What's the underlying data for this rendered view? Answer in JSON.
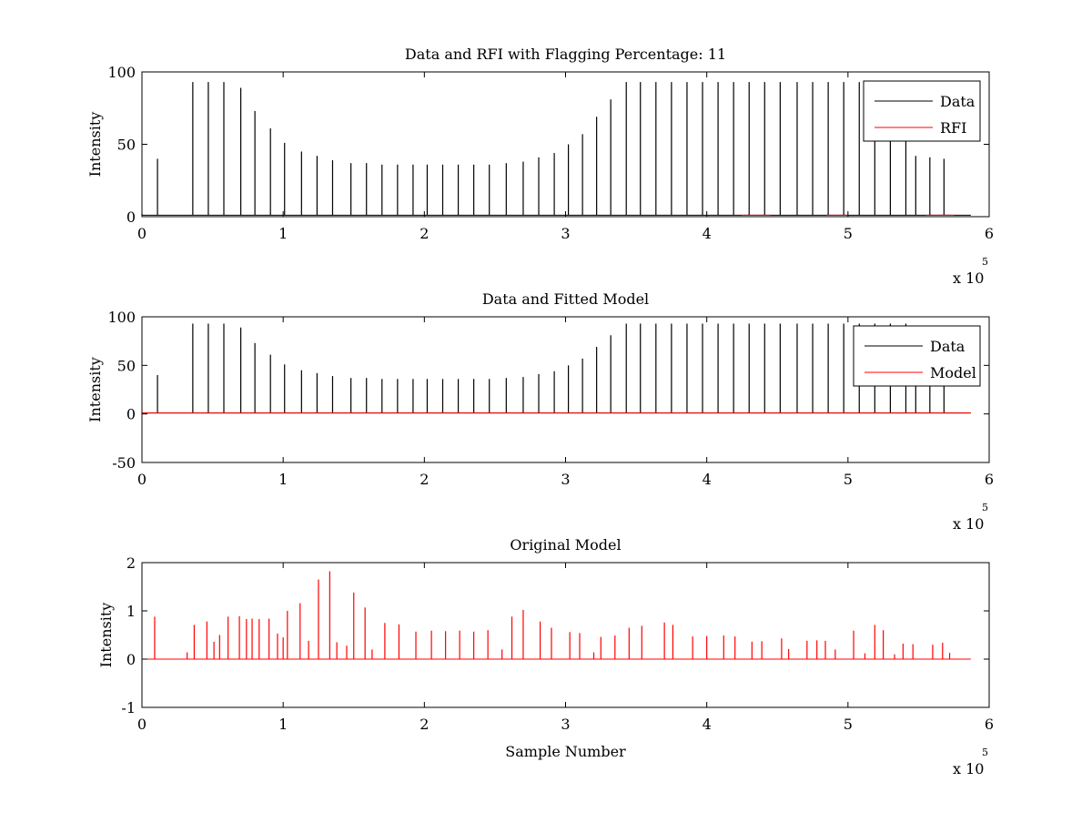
{
  "chart_data": [
    {
      "type": "line",
      "title": "Data and RFI with Flagging Percentage: 11",
      "xlabel": "",
      "ylabel": "Intensity",
      "xlim": [
        0,
        6
      ],
      "ylim": [
        0,
        100
      ],
      "xticks": [
        0,
        1,
        2,
        3,
        4,
        5,
        6
      ],
      "yticks": [
        0,
        50,
        100
      ],
      "x_multiplier": "x 10",
      "x_multiplier_exp": "5",
      "legend": [
        "Data",
        "RFI"
      ],
      "legend_position": "top-right",
      "grid": false,
      "series": [
        {
          "name": "Data",
          "color": "#000000",
          "baseline": 1,
          "peaks": [
            {
              "x": 0.0,
              "y": 2
            },
            {
              "x": 0.11,
              "y": 40
            },
            {
              "x": 0.36,
              "y": 93
            },
            {
              "x": 0.47,
              "y": 93
            },
            {
              "x": 0.58,
              "y": 93
            },
            {
              "x": 0.7,
              "y": 89
            },
            {
              "x": 0.8,
              "y": 73
            },
            {
              "x": 0.91,
              "y": 61
            },
            {
              "x": 1.01,
              "y": 51
            },
            {
              "x": 1.13,
              "y": 45
            },
            {
              "x": 1.24,
              "y": 42
            },
            {
              "x": 1.35,
              "y": 39
            },
            {
              "x": 1.48,
              "y": 37
            },
            {
              "x": 1.59,
              "y": 37
            },
            {
              "x": 1.7,
              "y": 36
            },
            {
              "x": 1.81,
              "y": 36
            },
            {
              "x": 1.92,
              "y": 36
            },
            {
              "x": 2.02,
              "y": 36
            },
            {
              "x": 2.13,
              "y": 36
            },
            {
              "x": 2.24,
              "y": 36
            },
            {
              "x": 2.35,
              "y": 36
            },
            {
              "x": 2.46,
              "y": 36
            },
            {
              "x": 2.58,
              "y": 37
            },
            {
              "x": 2.7,
              "y": 38
            },
            {
              "x": 2.81,
              "y": 41
            },
            {
              "x": 2.92,
              "y": 44
            },
            {
              "x": 3.02,
              "y": 50
            },
            {
              "x": 3.12,
              "y": 57
            },
            {
              "x": 3.22,
              "y": 69
            },
            {
              "x": 3.32,
              "y": 81
            },
            {
              "x": 3.43,
              "y": 93
            },
            {
              "x": 3.53,
              "y": 93
            },
            {
              "x": 3.64,
              "y": 93
            },
            {
              "x": 3.75,
              "y": 93
            },
            {
              "x": 3.86,
              "y": 93
            },
            {
              "x": 3.97,
              "y": 93
            },
            {
              "x": 4.08,
              "y": 93
            },
            {
              "x": 4.19,
              "y": 93
            },
            {
              "x": 4.3,
              "y": 93
            },
            {
              "x": 4.41,
              "y": 93
            },
            {
              "x": 4.52,
              "y": 93
            },
            {
              "x": 4.64,
              "y": 93
            },
            {
              "x": 4.75,
              "y": 93
            },
            {
              "x": 4.86,
              "y": 93
            },
            {
              "x": 4.97,
              "y": 93
            },
            {
              "x": 5.08,
              "y": 93
            },
            {
              "x": 5.19,
              "y": 93
            },
            {
              "x": 5.3,
              "y": 93
            },
            {
              "x": 5.41,
              "y": 93
            },
            {
              "x": 5.48,
              "y": 42
            },
            {
              "x": 5.58,
              "y": 41
            },
            {
              "x": 5.68,
              "y": 40
            }
          ]
        },
        {
          "name": "RFI",
          "color": "#ff0000",
          "segments": [
            [
              4.25,
              4.45
            ],
            [
              4.85,
              5.0
            ],
            [
              5.55,
              5.75
            ]
          ],
          "level": 1
        }
      ]
    },
    {
      "type": "line",
      "title": "Data and Fitted Model",
      "xlabel": "",
      "ylabel": "Intensity",
      "xlim": [
        0,
        6
      ],
      "ylim": [
        -50,
        100
      ],
      "xticks": [
        0,
        1,
        2,
        3,
        4,
        5,
        6
      ],
      "yticks": [
        -50,
        0,
        50,
        100
      ],
      "x_multiplier": "x 10",
      "x_multiplier_exp": "5",
      "legend": [
        "Data",
        "Model"
      ],
      "legend_position": "top-right",
      "grid": false,
      "series": [
        {
          "name": "Data",
          "color": "#000000",
          "same_as_panel": 0
        },
        {
          "name": "Model",
          "color": "#ff0000",
          "x_range": [
            0,
            5.87
          ],
          "value": 1
        }
      ]
    },
    {
      "type": "line",
      "title": "Original Model",
      "xlabel": "Sample Number",
      "ylabel": "Intensity",
      "xlim": [
        0,
        6
      ],
      "ylim": [
        -1,
        2
      ],
      "xticks": [
        0,
        1,
        2,
        3,
        4,
        5,
        6
      ],
      "yticks": [
        -1,
        0,
        1,
        2
      ],
      "x_multiplier": "x 10",
      "x_multiplier_exp": "5",
      "grid": false,
      "series": [
        {
          "color": "#ff0000",
          "baseline": 0,
          "peaks": [
            {
              "x": 0.09,
              "y": 0.88
            },
            {
              "x": 0.32,
              "y": 0.14
            },
            {
              "x": 0.37,
              "y": 0.71
            },
            {
              "x": 0.46,
              "y": 0.78
            },
            {
              "x": 0.51,
              "y": 0.36
            },
            {
              "x": 0.55,
              "y": 0.5
            },
            {
              "x": 0.61,
              "y": 0.88
            },
            {
              "x": 0.69,
              "y": 0.89
            },
            {
              "x": 0.74,
              "y": 0.83
            },
            {
              "x": 0.78,
              "y": 0.84
            },
            {
              "x": 0.83,
              "y": 0.83
            },
            {
              "x": 0.9,
              "y": 0.84
            },
            {
              "x": 0.96,
              "y": 0.53
            },
            {
              "x": 1.0,
              "y": 0.45
            },
            {
              "x": 1.03,
              "y": 1.0
            },
            {
              "x": 1.12,
              "y": 1.16
            },
            {
              "x": 1.18,
              "y": 0.38
            },
            {
              "x": 1.25,
              "y": 1.65
            },
            {
              "x": 1.33,
              "y": 1.82
            },
            {
              "x": 1.38,
              "y": 0.35
            },
            {
              "x": 1.45,
              "y": 0.28
            },
            {
              "x": 1.5,
              "y": 1.38
            },
            {
              "x": 1.58,
              "y": 1.07
            },
            {
              "x": 1.63,
              "y": 0.2
            },
            {
              "x": 1.72,
              "y": 0.75
            },
            {
              "x": 1.82,
              "y": 0.72
            },
            {
              "x": 1.94,
              "y": 0.57
            },
            {
              "x": 2.05,
              "y": 0.59
            },
            {
              "x": 2.15,
              "y": 0.58
            },
            {
              "x": 2.25,
              "y": 0.59
            },
            {
              "x": 2.35,
              "y": 0.57
            },
            {
              "x": 2.45,
              "y": 0.6
            },
            {
              "x": 2.55,
              "y": 0.2
            },
            {
              "x": 2.62,
              "y": 0.88
            },
            {
              "x": 2.7,
              "y": 1.02
            },
            {
              "x": 2.82,
              "y": 0.78
            },
            {
              "x": 2.9,
              "y": 0.65
            },
            {
              "x": 3.03,
              "y": 0.56
            },
            {
              "x": 3.1,
              "y": 0.54
            },
            {
              "x": 3.2,
              "y": 0.14
            },
            {
              "x": 3.25,
              "y": 0.46
            },
            {
              "x": 3.35,
              "y": 0.49
            },
            {
              "x": 3.45,
              "y": 0.65
            },
            {
              "x": 3.54,
              "y": 0.69
            },
            {
              "x": 3.7,
              "y": 0.76
            },
            {
              "x": 3.76,
              "y": 0.71
            },
            {
              "x": 3.9,
              "y": 0.47
            },
            {
              "x": 4.0,
              "y": 0.48
            },
            {
              "x": 4.12,
              "y": 0.49
            },
            {
              "x": 4.2,
              "y": 0.47
            },
            {
              "x": 4.32,
              "y": 0.36
            },
            {
              "x": 4.39,
              "y": 0.37
            },
            {
              "x": 4.53,
              "y": 0.43
            },
            {
              "x": 4.58,
              "y": 0.21
            },
            {
              "x": 4.71,
              "y": 0.38
            },
            {
              "x": 4.78,
              "y": 0.39
            },
            {
              "x": 4.84,
              "y": 0.38
            },
            {
              "x": 4.91,
              "y": 0.2
            },
            {
              "x": 5.04,
              "y": 0.59
            },
            {
              "x": 5.12,
              "y": 0.12
            },
            {
              "x": 5.19,
              "y": 0.71
            },
            {
              "x": 5.25,
              "y": 0.6
            },
            {
              "x": 5.33,
              "y": 0.1
            },
            {
              "x": 5.39,
              "y": 0.32
            },
            {
              "x": 5.46,
              "y": 0.31
            },
            {
              "x": 5.6,
              "y": 0.3
            },
            {
              "x": 5.67,
              "y": 0.34
            },
            {
              "x": 5.72,
              "y": 0.13
            }
          ]
        }
      ]
    }
  ]
}
